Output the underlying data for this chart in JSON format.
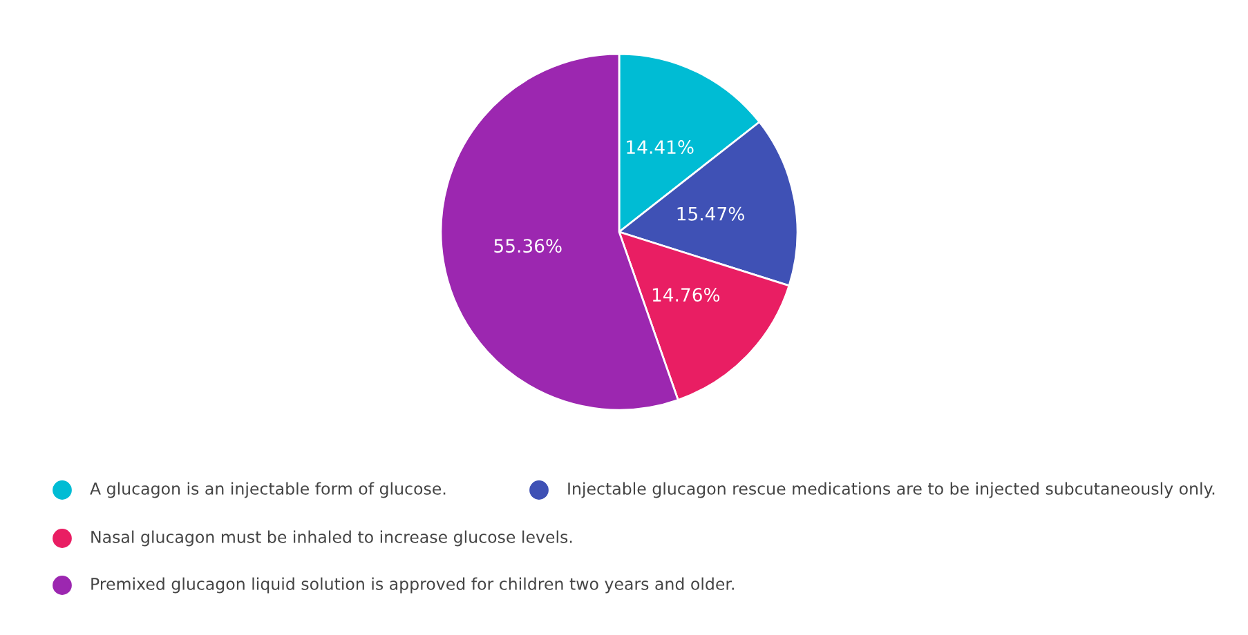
{
  "chart_data": {
    "type": "pie",
    "categories": [
      "A glucagon is an injectable form of glucose.",
      "Injectable glucagon rescue medications are to be injected subcutaneously only.",
      "Nasal glucagon must be inhaled to increase glucose levels.",
      "Premixed glucagon liquid solution is approved for children two years and older."
    ],
    "values": [
      14.41,
      15.47,
      14.76,
      55.36
    ],
    "colors": [
      "#00bcd4",
      "#3f51b5",
      "#e91e63",
      "#9c27b0"
    ],
    "value_labels": [
      "14.41%",
      "15.47%",
      "14.76%",
      "55.36%"
    ],
    "legend": "bottom"
  }
}
